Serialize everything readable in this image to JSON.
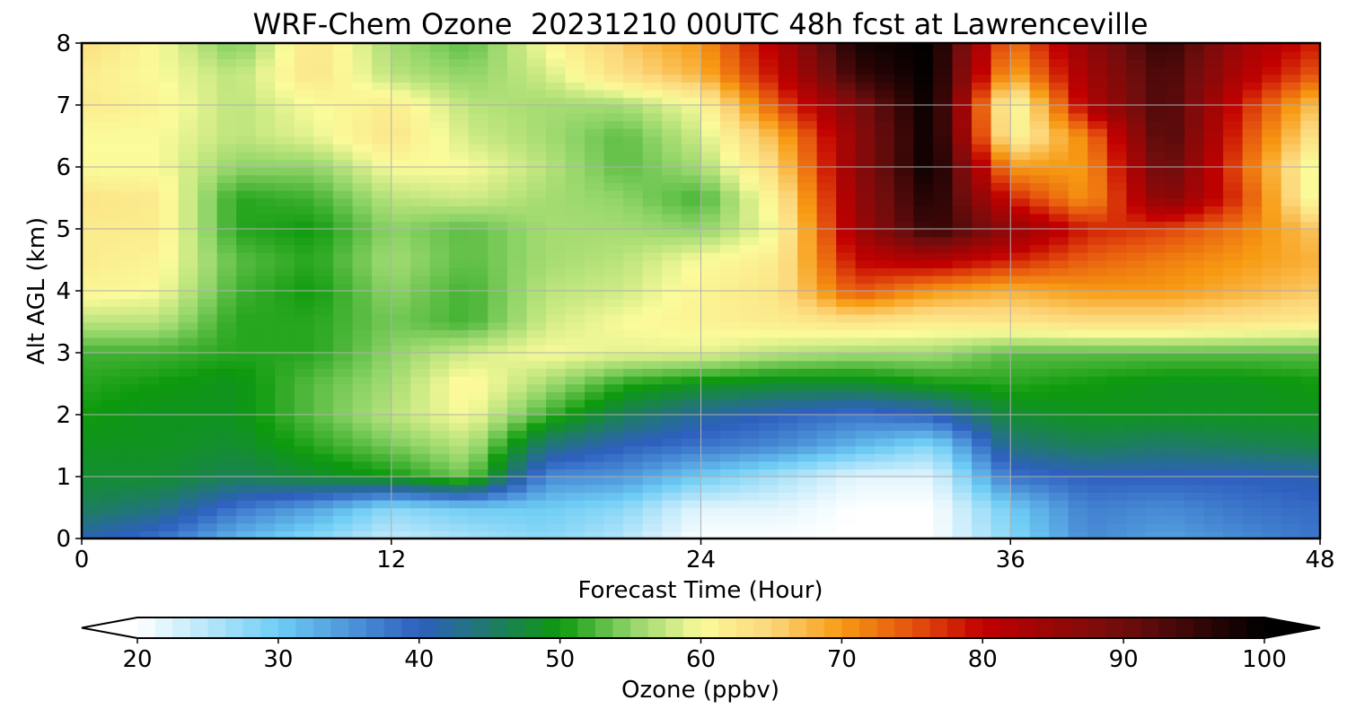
{
  "chart_data": {
    "type": "heatmap",
    "title": "WRF-Chem Ozone  20231210 00UTC 48h fcst at Lawrenceville",
    "xlabel": "Forecast Time (Hour)",
    "ylabel": "Alt AGL (km)",
    "xlim": [
      0,
      48
    ],
    "ylim": [
      0,
      8
    ],
    "xticks": [
      0,
      12,
      24,
      36,
      48
    ],
    "yticks": [
      0,
      1,
      2,
      3,
      4,
      5,
      6,
      7,
      8
    ],
    "grid": true,
    "colorbar": {
      "label": "Ozone  (ppbv)",
      "min": 20,
      "max": 100,
      "ticks": [
        20,
        30,
        40,
        50,
        60,
        70,
        80,
        90,
        100
      ],
      "extend": "both",
      "orientation": "horizontal",
      "color_stops": [
        {
          "v": 20,
          "c": "#ffffff"
        },
        {
          "v": 30,
          "c": "#6ecdf5"
        },
        {
          "v": 40,
          "c": "#2e5fbf"
        },
        {
          "v": 45,
          "c": "#1f7a6a"
        },
        {
          "v": 50,
          "c": "#0d9a0d"
        },
        {
          "v": 55,
          "c": "#8fd468"
        },
        {
          "v": 60,
          "c": "#fbfb9a"
        },
        {
          "v": 65,
          "c": "#fcd67a"
        },
        {
          "v": 70,
          "c": "#f79a12"
        },
        {
          "v": 75,
          "c": "#e5520e"
        },
        {
          "v": 80,
          "c": "#c20000"
        },
        {
          "v": 90,
          "c": "#700d0d"
        },
        {
          "v": 100,
          "c": "#000000"
        }
      ]
    },
    "x": [
      0,
      3,
      6,
      9,
      12,
      15,
      18,
      21,
      24,
      27,
      30,
      33,
      36,
      39,
      42,
      45,
      48
    ],
    "y": [
      0,
      0.5,
      1,
      1.5,
      2,
      2.5,
      3,
      3.5,
      4,
      4.5,
      5,
      5.5,
      6,
      6.5,
      7,
      7.5,
      8
    ],
    "z": [
      [
        41,
        38,
        32,
        28,
        24,
        26,
        28,
        25,
        20,
        20,
        20,
        20,
        28,
        36,
        34,
        36,
        38
      ],
      [
        46,
        44,
        38,
        34,
        28,
        30,
        30,
        28,
        22,
        22,
        20,
        20,
        30,
        37,
        36,
        38,
        39
      ],
      [
        48,
        48,
        46,
        48,
        50,
        54,
        36,
        35,
        30,
        26,
        22,
        22,
        38,
        40,
        40,
        40,
        41
      ],
      [
        49,
        49,
        48,
        51,
        54,
        57,
        44,
        40,
        38,
        36,
        32,
        28,
        44,
        46,
        45,
        46,
        47
      ],
      [
        50,
        49,
        49,
        53,
        57,
        60,
        52,
        46,
        42,
        40,
        38,
        40,
        48,
        49,
        49,
        49,
        49
      ],
      [
        51,
        50,
        49,
        53,
        56,
        61,
        56,
        51,
        49,
        48,
        48,
        50,
        51,
        50,
        49,
        49,
        50
      ],
      [
        52,
        52,
        51,
        51,
        55,
        58,
        60,
        59,
        59,
        57,
        56,
        56,
        53,
        53,
        53,
        53,
        53
      ],
      [
        57,
        57,
        51,
        51,
        54,
        52,
        58,
        60,
        61,
        62,
        63,
        62,
        63,
        64,
        64,
        63,
        62
      ],
      [
        61,
        60,
        52,
        50,
        55,
        52,
        57,
        58,
        61,
        63,
        75,
        70,
        68,
        70,
        70,
        68,
        66
      ],
      [
        62,
        61,
        53,
        51,
        56,
        53,
        56,
        57,
        60,
        62,
        80,
        82,
        78,
        74,
        72,
        70,
        68
      ],
      [
        62,
        62,
        51,
        50,
        55,
        53,
        56,
        56,
        55,
        60,
        84,
        96,
        86,
        78,
        76,
        72,
        66
      ],
      [
        63,
        62,
        51,
        52,
        57,
        58,
        56,
        55,
        52,
        62,
        85,
        98,
        78,
        70,
        88,
        76,
        58
      ],
      [
        60,
        60,
        55,
        55,
        60,
        60,
        57,
        53,
        56,
        65,
        86,
        100,
        70,
        70,
        92,
        74,
        58
      ],
      [
        60,
        60,
        57,
        59,
        63,
        58,
        56,
        53,
        58,
        68,
        86,
        100,
        60,
        72,
        94,
        76,
        62
      ],
      [
        62,
        61,
        57,
        60,
        62,
        57,
        56,
        56,
        60,
        75,
        88,
        100,
        58,
        82,
        94,
        78,
        66
      ],
      [
        62,
        60,
        57,
        63,
        57,
        55,
        58,
        64,
        68,
        80,
        95,
        100,
        68,
        84,
        94,
        82,
        74
      ],
      [
        64,
        60,
        54,
        63,
        56,
        53,
        60,
        66,
        70,
        82,
        98,
        100,
        72,
        86,
        96,
        84,
        78
      ]
    ]
  }
}
